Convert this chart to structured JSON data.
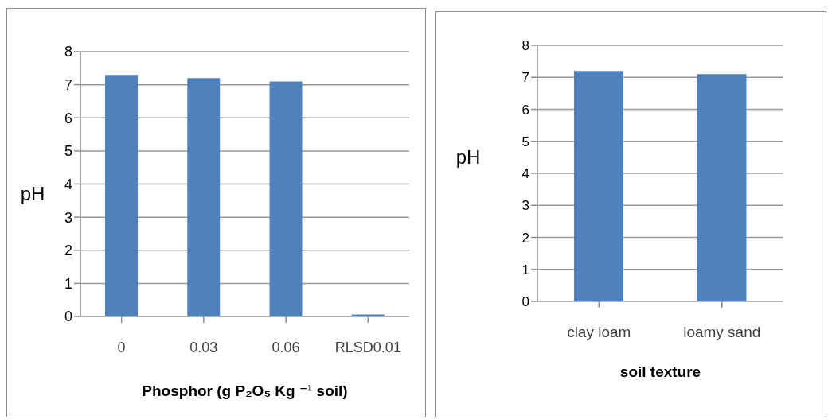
{
  "chart_data": [
    {
      "type": "bar",
      "xlabel": "Phosphor (g P₂O₅  Kg ⁻¹ soil)",
      "ylabel": "pH",
      "categories": [
        "0",
        "0.03",
        "0.06",
        "RLSD0.01"
      ],
      "values": [
        7.3,
        7.2,
        7.1,
        0.06
      ],
      "color": "#4f81bd",
      "ylim": [
        0,
        8
      ],
      "yticks": [
        0,
        1,
        2,
        3,
        4,
        5,
        6,
        7,
        8
      ],
      "grid": "y",
      "legend": false
    },
    {
      "type": "bar",
      "xlabel": "soil texture",
      "ylabel": "pH",
      "categories": [
        "clay loam",
        "loamy sand"
      ],
      "values": [
        7.2,
        7.1
      ],
      "color": "#4f81bd",
      "ylim": [
        0,
        8
      ],
      "yticks": [
        0,
        1,
        2,
        3,
        4,
        5,
        6,
        7,
        8
      ],
      "grid": "y",
      "legend": false
    }
  ]
}
